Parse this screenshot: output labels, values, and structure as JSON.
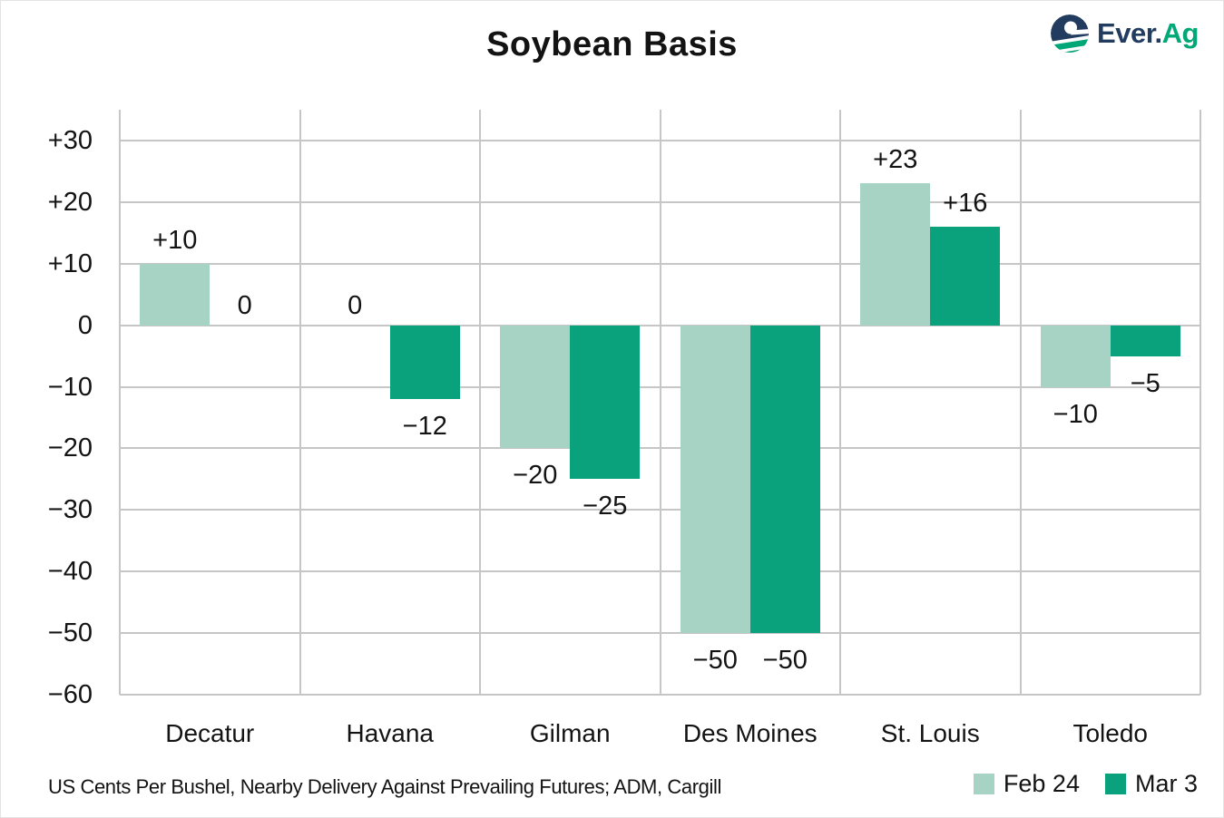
{
  "header": {
    "brand_prefix": "Ever.",
    "brand_suffix": "Ag",
    "brand_navy": "#223C5F",
    "brand_green": "#00A877"
  },
  "footnote": "US Cents Per Bushel, Nearby Delivery Against Prevailing Futures; ADM, Cargill",
  "chart_data": {
    "type": "bar",
    "title": "Soybean Basis",
    "categories": [
      "Decatur",
      "Havana",
      "Gilman",
      "Des Moines",
      "St. Louis",
      "Toledo"
    ],
    "series": [
      {
        "name": "Feb 24",
        "color": "#a7d3c4",
        "values": [
          10,
          0,
          -20,
          -50,
          23,
          -10
        ]
      },
      {
        "name": "Mar 3",
        "color": "#09a27c",
        "values": [
          0,
          -12,
          -25,
          -50,
          16,
          -5
        ]
      }
    ],
    "value_labels": [
      [
        "+10",
        "0"
      ],
      [
        "0",
        "−12"
      ],
      [
        "−20",
        "−25"
      ],
      [
        "−50",
        "−50"
      ],
      [
        "+23",
        "+16"
      ],
      [
        "−10",
        "−5"
      ]
    ],
    "ylim": [
      -60,
      35
    ],
    "yticks": [
      30,
      20,
      10,
      0,
      -10,
      -20,
      -30,
      -40,
      -50,
      -60
    ],
    "ytick_labels": [
      "+30",
      "+20",
      "+10",
      "0",
      "−10",
      "−20",
      "−30",
      "−40",
      "−50",
      "−60"
    ],
    "xlabel": "",
    "ylabel": "",
    "grid": true,
    "grid_color": "#c6c6c6",
    "legend_position": "bottom-right"
  }
}
